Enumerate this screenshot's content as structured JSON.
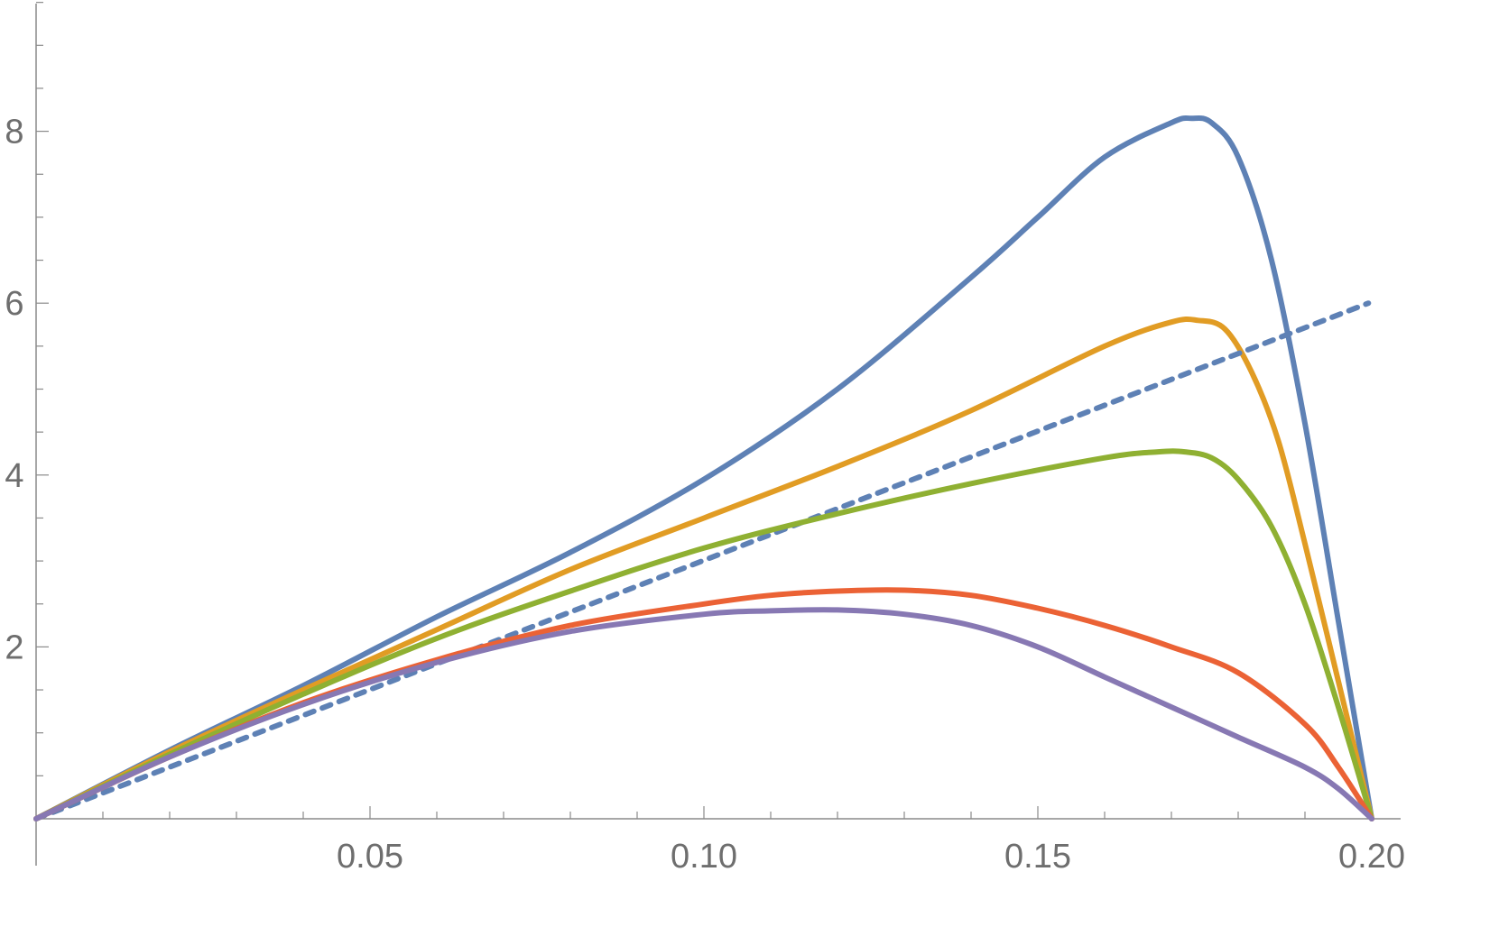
{
  "chart_data": {
    "type": "line",
    "title": "",
    "xlabel": "",
    "ylabel": "",
    "xlim": [
      0,
      0.2
    ],
    "ylim": [
      0,
      9.5
    ],
    "x_major_ticks": [
      0.05,
      0.1,
      0.15,
      0.2
    ],
    "x_tick_labels": [
      "0.05",
      "0.10",
      "0.15",
      "0.20"
    ],
    "x_minor_step": 0.01,
    "y_major_ticks": [
      2,
      4,
      6,
      8
    ],
    "y_tick_labels": [
      "2",
      "4",
      "6",
      "8"
    ],
    "y_minor_step": 0.5,
    "grid": false,
    "legend": "none",
    "series": [
      {
        "name": "blue",
        "color": "#5e81b5",
        "dashed": false,
        "x": [
          0,
          0.02,
          0.04,
          0.06,
          0.08,
          0.1,
          0.12,
          0.14,
          0.15,
          0.16,
          0.17,
          0.173,
          0.176,
          0.18,
          0.185,
          0.19,
          0.195,
          0.2
        ],
        "y": [
          0,
          0.8,
          1.55,
          2.35,
          3.1,
          3.95,
          5.0,
          6.3,
          7.0,
          7.7,
          8.1,
          8.15,
          8.1,
          7.7,
          6.5,
          4.6,
          2.3,
          0
        ]
      },
      {
        "name": "orange",
        "color": "#e19c24",
        "dashed": false,
        "x": [
          0,
          0.02,
          0.04,
          0.06,
          0.08,
          0.1,
          0.12,
          0.14,
          0.16,
          0.17,
          0.174,
          0.178,
          0.182,
          0.186,
          0.19,
          0.195,
          0.2
        ],
        "y": [
          0,
          0.78,
          1.5,
          2.2,
          2.9,
          3.5,
          4.1,
          4.75,
          5.5,
          5.78,
          5.8,
          5.7,
          5.2,
          4.4,
          3.2,
          1.6,
          0
        ]
      },
      {
        "name": "dotted",
        "color": "#5e81b5",
        "dashed": true,
        "x": [
          0,
          0.1995
        ],
        "y": [
          0,
          6.0
        ]
      },
      {
        "name": "green",
        "color": "#8fb032",
        "dashed": false,
        "x": [
          0,
          0.02,
          0.04,
          0.06,
          0.08,
          0.1,
          0.12,
          0.14,
          0.16,
          0.168,
          0.172,
          0.176,
          0.18,
          0.185,
          0.19,
          0.195,
          0.2
        ],
        "y": [
          0,
          0.75,
          1.45,
          2.1,
          2.65,
          3.15,
          3.55,
          3.9,
          4.2,
          4.27,
          4.27,
          4.2,
          3.95,
          3.4,
          2.5,
          1.3,
          0
        ]
      },
      {
        "name": "red",
        "color": "#eb6235",
        "dashed": false,
        "x": [
          0,
          0.02,
          0.04,
          0.06,
          0.08,
          0.1,
          0.11,
          0.12,
          0.13,
          0.14,
          0.15,
          0.16,
          0.17,
          0.18,
          0.19,
          0.195,
          0.2
        ],
        "y": [
          0,
          0.72,
          1.35,
          1.85,
          2.25,
          2.5,
          2.6,
          2.65,
          2.66,
          2.6,
          2.45,
          2.25,
          2.0,
          1.7,
          1.1,
          0.6,
          0
        ]
      },
      {
        "name": "purple",
        "color": "#8778b3",
        "dashed": false,
        "x": [
          0,
          0.02,
          0.04,
          0.06,
          0.08,
          0.1,
          0.11,
          0.12,
          0.13,
          0.14,
          0.15,
          0.16,
          0.17,
          0.18,
          0.19,
          0.195,
          0.2
        ],
        "y": [
          0,
          0.72,
          1.33,
          1.82,
          2.18,
          2.38,
          2.42,
          2.43,
          2.38,
          2.25,
          2.0,
          1.65,
          1.3,
          0.95,
          0.6,
          0.35,
          0
        ]
      }
    ]
  }
}
